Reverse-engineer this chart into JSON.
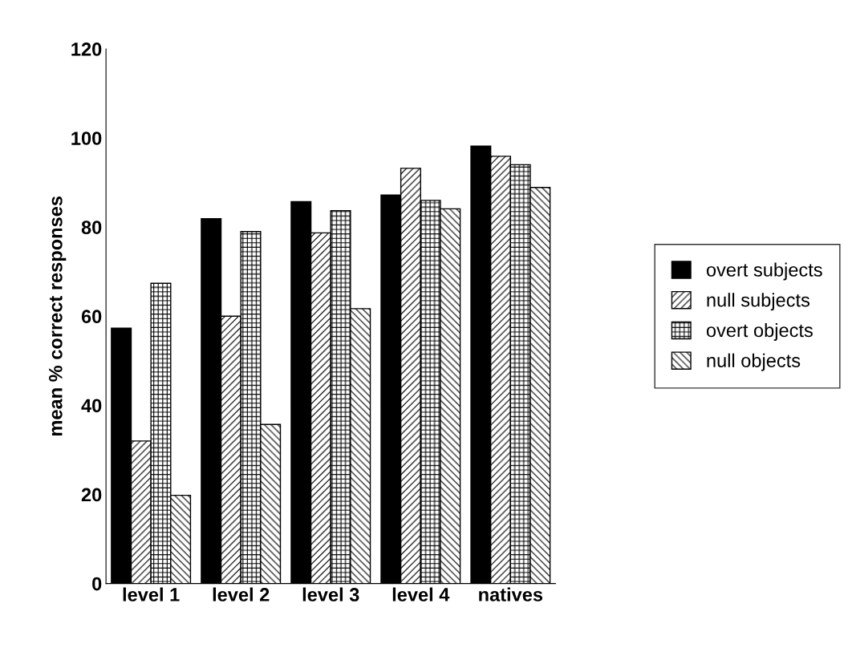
{
  "chart_data": {
    "type": "bar",
    "ylabel": "mean % correct responses",
    "categories": [
      "level 1",
      "level 2",
      "level 3",
      "level 4",
      "natives"
    ],
    "series": [
      {
        "name": "overt subjects",
        "color": "#000000",
        "values": [
          57.3,
          81.9,
          85.7,
          87.2,
          98.2
        ]
      },
      {
        "name": "null subjects",
        "color": "#000000",
        "values": [
          32,
          60,
          78.7,
          93.2,
          95.9
        ]
      },
      {
        "name": "overt objects",
        "color": "#000000",
        "values": [
          67.4,
          79,
          83.7,
          86,
          94
        ]
      },
      {
        "name": "null objects",
        "color": "#000000",
        "values": [
          19.8,
          35.7,
          61.7,
          84.1,
          88.9
        ]
      }
    ],
    "ylim": [
      0,
      120
    ],
    "yticks": [
      0,
      20,
      40,
      60,
      80,
      100,
      120
    ],
    "grid": false,
    "legend": "right"
  }
}
